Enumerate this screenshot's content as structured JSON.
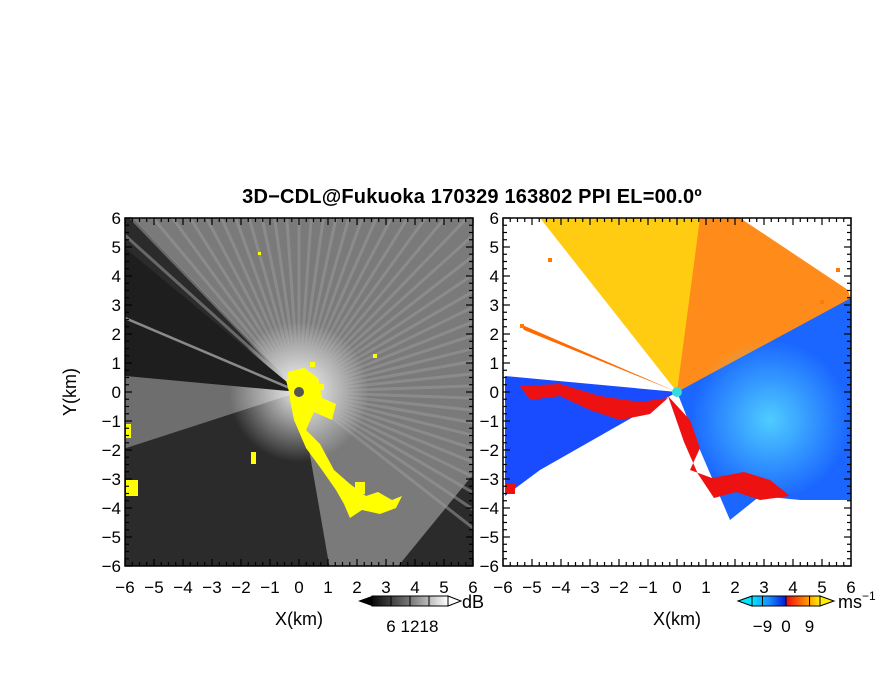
{
  "title": "3D−CDL@Fukuoka 170329 163802 PPI EL=00.0º",
  "chart_data": [
    {
      "type": "heatmap",
      "panel": "reflectivity",
      "xlabel": "X(km)",
      "ylabel": "Y(km)",
      "xlim": [
        -6,
        6
      ],
      "ylim": [
        -6,
        6
      ],
      "x_ticks": [
        "−6",
        "−5",
        "−4",
        "−3",
        "−2",
        "−1",
        "0",
        "1",
        "2",
        "3",
        "4",
        "5",
        "6"
      ],
      "y_ticks": [
        "6",
        "5",
        "4",
        "3",
        "2",
        "1",
        "0",
        "−1",
        "−2",
        "−3",
        "−4",
        "−5",
        "−6"
      ],
      "colorbar": {
        "unit": "dB",
        "ticks": [
          "6",
          "12",
          "18"
        ],
        "range": [
          0,
          24
        ],
        "colormap": "grayscale"
      },
      "highlight_color": "#ffff00"
    },
    {
      "type": "heatmap",
      "panel": "doppler_velocity",
      "xlabel": "X(km)",
      "xlim": [
        -6,
        6
      ],
      "ylim": [
        -6,
        6
      ],
      "x_ticks": [
        "−6",
        "−5",
        "−4",
        "−3",
        "−2",
        "−1",
        "0",
        "1",
        "2",
        "3",
        "4",
        "5",
        "6"
      ],
      "y_ticks": [
        "6",
        "5",
        "4",
        "3",
        "2",
        "1",
        "0",
        "−1",
        "−2",
        "−3",
        "−4",
        "−5",
        "−6"
      ],
      "colorbar": {
        "unit": "ms",
        "unit_exp": "−1",
        "ticks": [
          "−9",
          "0",
          "9"
        ],
        "range": [
          -13,
          13
        ],
        "colormap": "cyan-blue-red-orange-yellow"
      },
      "radar_marker_color": "#33dddd"
    }
  ]
}
